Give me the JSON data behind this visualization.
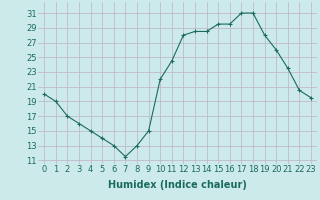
{
  "x": [
    0,
    1,
    2,
    3,
    4,
    5,
    6,
    7,
    8,
    9,
    10,
    11,
    12,
    13,
    14,
    15,
    16,
    17,
    18,
    19,
    20,
    21,
    22,
    23
  ],
  "y": [
    20,
    19,
    17,
    16,
    15,
    14,
    13,
    11.5,
    13,
    15,
    22,
    24.5,
    28,
    28.5,
    28.5,
    29.5,
    29.5,
    31,
    31,
    28,
    26,
    23.5,
    20.5,
    19.5
  ],
  "line_color": "#1a6b5e",
  "marker": "+",
  "marker_size": 3,
  "bg_color": "#cdeaea",
  "grid_color": "#c0aec8",
  "xlabel": "Humidex (Indice chaleur)",
  "xlabel_fontsize": 7,
  "ylabel_ticks": [
    11,
    13,
    15,
    17,
    19,
    21,
    23,
    25,
    27,
    29,
    31
  ],
  "ylim": [
    10.5,
    32.5
  ],
  "xlim": [
    -0.5,
    23.5
  ],
  "xticks": [
    0,
    1,
    2,
    3,
    4,
    5,
    6,
    7,
    8,
    9,
    10,
    11,
    12,
    13,
    14,
    15,
    16,
    17,
    18,
    19,
    20,
    21,
    22,
    23
  ],
  "xtick_labels": [
    "0",
    "1",
    "2",
    "3",
    "4",
    "5",
    "6",
    "7",
    "8",
    "9",
    "10",
    "11",
    "12",
    "13",
    "14",
    "15",
    "16",
    "17",
    "18",
    "19",
    "20",
    "21",
    "22",
    "23"
  ],
  "tick_fontsize": 6,
  "linewidth": 0.8,
  "markeredgewidth": 0.8
}
